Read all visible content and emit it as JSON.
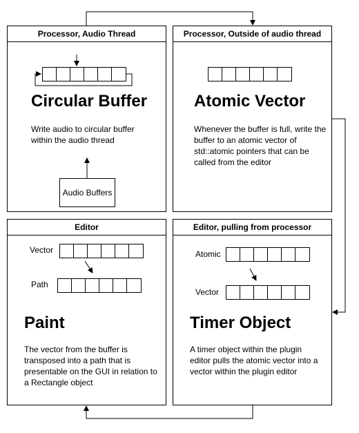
{
  "panels": {
    "circular": {
      "header": "Processor, Audio Thread",
      "title": "Circular Buffer",
      "description": "Write audio to circular buffer within the audio thread",
      "box_label": "Audio Buffers"
    },
    "atomic": {
      "header": "Processor, Outside of audio thread",
      "title": "Atomic Vector",
      "description": "Whenever the buffer is full, write the buffer to an atomic vector of std::atomic pointers that can be called from the editor"
    },
    "editor": {
      "header": "Editor",
      "title": "Paint",
      "description": "The vector from the buffer is transposed into a path that is presentable on the GUI in relation to a Rectangle object",
      "label_vector": "Vector",
      "label_path": "Path"
    },
    "timer": {
      "header": "Editor, pulling from processor",
      "title": "Timer Object",
      "description": "A timer object within the plugin editor pulls the atomic vector into a vector within the plugin editor",
      "label_atomic": "Atomic",
      "label_vector": "Vector"
    }
  },
  "colors": {
    "line": "#000000",
    "background": "#ffffff"
  }
}
